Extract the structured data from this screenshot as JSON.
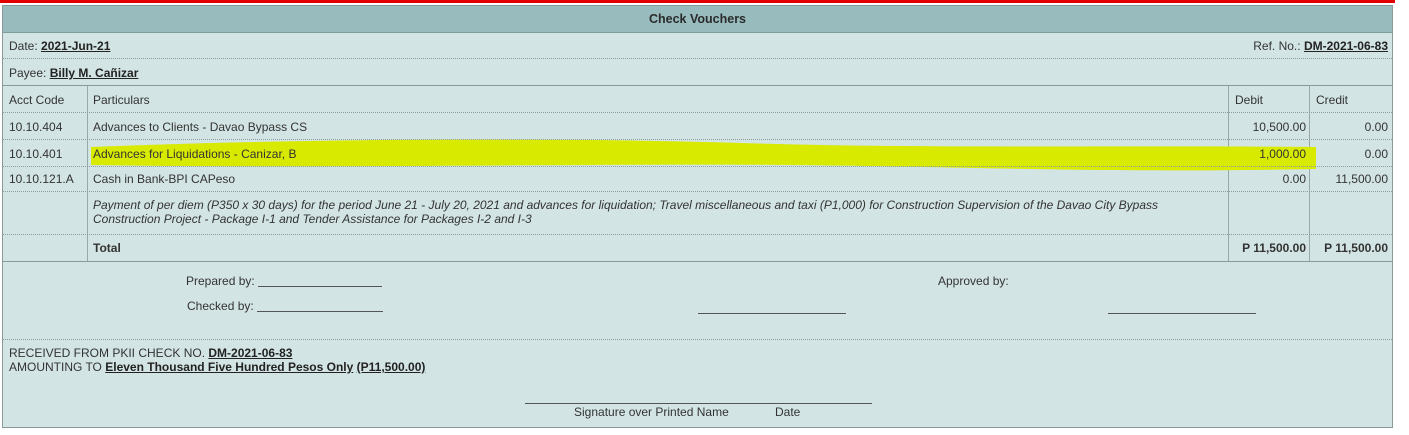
{
  "title": "Check Vouchers",
  "date_label": "Date:",
  "date_value": "2021-Jun-21",
  "ref_label": "Ref. No.:",
  "ref_value": "DM-2021-06-83",
  "payee_label": "Payee:",
  "payee_value": "Billy M. Cañizar",
  "columns": {
    "acct_code": "Acct Code",
    "particulars": "Particulars",
    "debit": "Debit",
    "credit": "Credit"
  },
  "entries": [
    {
      "code": "10.10.404",
      "particulars": "Advances to Clients - Davao Bypass CS",
      "debit": "10,500.00",
      "credit": "0.00"
    },
    {
      "code": "10.10.401",
      "particulars": "Advances for Liquidations - Canizar, B",
      "debit": "1,000.00",
      "credit": "0.00"
    },
    {
      "code": "10.10.121.A",
      "particulars": "Cash in Bank-BPI CAPeso",
      "debit": "0.00",
      "credit": "11,500.00"
    }
  ],
  "description": "Payment of per diem (P350 x 30 days) for the period June 21 - July 20, 2021 and advances for liquidation; Travel miscellaneous and taxi (P1,000) for Construction Supervision of the Davao City Bypass Construction Project - Package I-1 and Tender Assistance for Packages I-2 and I-3",
  "total_label": "Total",
  "total_debit": "P 11,500.00",
  "total_credit": "P 11,500.00",
  "prepared_label": "Prepared by:",
  "checked_label": "Checked by:",
  "approved_label": "Approved by:",
  "received_prefix": "RECEIVED FROM PKII CHECK NO.",
  "received_check_no": "DM-2021-06-83",
  "amount_prefix": "AMOUNTING TO",
  "amount_words": "Eleven Thousand Five Hundred Pesos Only",
  "amount_figure": "(P11,500.00)",
  "signature_label": "Signature over Printed Name",
  "date_sign_label": "Date",
  "highlight_color": "#d8ea00"
}
